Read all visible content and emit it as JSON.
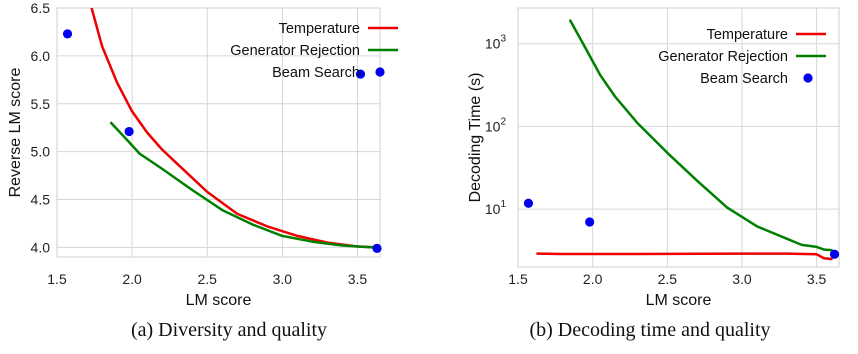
{
  "chart_data": [
    {
      "id": "a",
      "type": "line",
      "caption": "(a) Diversity and quality",
      "xlabel": "LM score",
      "ylabel": "Reverse LM score",
      "xlim": [
        1.5,
        3.65
      ],
      "ylim": [
        3.9,
        6.5
      ],
      "xticks": [
        1.5,
        2.0,
        2.5,
        3.0,
        3.5
      ],
      "xtick_labels": [
        "1.5",
        "2.0",
        "2.5",
        "3.0",
        "3.5"
      ],
      "yticks": [
        4.0,
        4.5,
        5.0,
        5.5,
        6.0,
        6.5
      ],
      "ytick_labels": [
        "4.0",
        "4.5",
        "5.0",
        "5.5",
        "6.0",
        "6.5"
      ],
      "yscale": "linear",
      "grid": true,
      "legend_position": "top-right",
      "series": [
        {
          "name": "Temperature",
          "kind": "line",
          "color": "#ee0000",
          "x": [
            1.73,
            1.8,
            1.9,
            2.0,
            2.1,
            2.2,
            2.35,
            2.5,
            2.7,
            2.9,
            3.1,
            3.3,
            3.5,
            3.63
          ],
          "y": [
            6.5,
            6.1,
            5.72,
            5.42,
            5.2,
            5.02,
            4.8,
            4.58,
            4.35,
            4.22,
            4.12,
            4.05,
            4.01,
            4.0
          ]
        },
        {
          "name": "Generator Rejection",
          "kind": "line",
          "color": "#008000",
          "x": [
            1.86,
            1.95,
            2.05,
            2.2,
            2.4,
            2.6,
            2.8,
            3.0,
            3.2,
            3.4,
            3.6
          ],
          "y": [
            5.3,
            5.15,
            4.98,
            4.82,
            4.6,
            4.39,
            4.24,
            4.12,
            4.06,
            4.02,
            4.0
          ]
        },
        {
          "name": "Beam Search",
          "kind": "scatter",
          "color": "#0000ee",
          "x": [
            1.57,
            1.98,
            3.52,
            3.63
          ],
          "y": [
            6.23,
            5.21,
            5.81,
            3.99
          ]
        }
      ]
    },
    {
      "id": "b",
      "type": "line",
      "caption": "(b) Decoding time and quality",
      "xlabel": "LM score",
      "ylabel": "Decoding Time (s)",
      "xlim": [
        1.5,
        3.65
      ],
      "ylim": [
        2.0,
        2700
      ],
      "xticks": [
        1.5,
        2.0,
        2.5,
        3.0,
        3.5
      ],
      "xtick_labels": [
        "1.5",
        "2.0",
        "2.5",
        "3.0",
        "3.5"
      ],
      "yticks": [
        10,
        100,
        1000
      ],
      "ytick_labels": [
        [
          "10",
          "1"
        ],
        [
          "10",
          "2"
        ],
        [
          "10",
          "3"
        ]
      ],
      "yscale": "log",
      "grid": true,
      "legend_position": "top-right",
      "series": [
        {
          "name": "Temperature",
          "kind": "line",
          "color": "#ee0000",
          "x": [
            1.63,
            1.8,
            2.0,
            2.5,
            3.0,
            3.3,
            3.5,
            3.55,
            3.6
          ],
          "y": [
            2.9,
            2.87,
            2.87,
            2.88,
            2.9,
            2.9,
            2.85,
            2.55,
            2.5
          ]
        },
        {
          "name": "Generator Rejection",
          "kind": "line",
          "color": "#008000",
          "x": [
            1.85,
            1.95,
            2.05,
            2.15,
            2.3,
            2.5,
            2.7,
            2.9,
            3.1,
            3.3,
            3.4,
            3.5,
            3.55,
            3.6
          ],
          "y": [
            1900,
            900,
            420,
            230,
            110,
            48,
            22,
            10.5,
            6.2,
            4.4,
            3.7,
            3.5,
            3.25,
            3.2
          ]
        },
        {
          "name": "Beam Search",
          "kind": "scatter",
          "color": "#0000ee",
          "x": [
            1.57,
            1.98,
            3.62
          ],
          "y": [
            11.8,
            7.0,
            2.85
          ]
        }
      ]
    }
  ]
}
